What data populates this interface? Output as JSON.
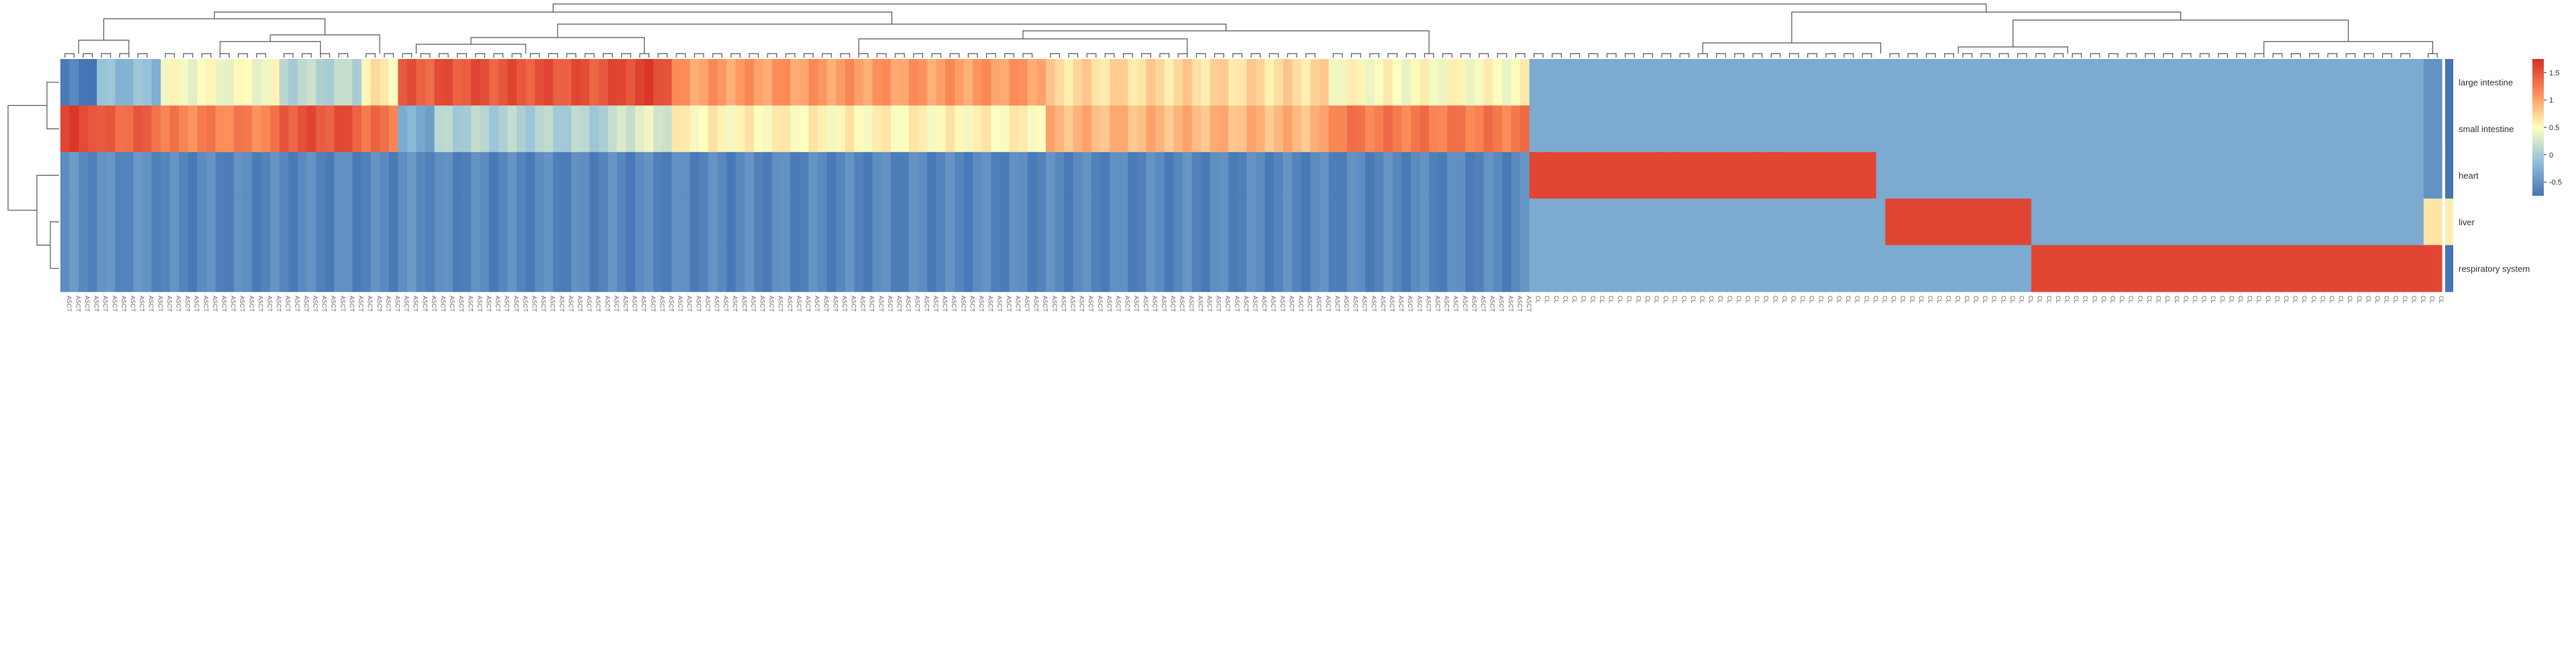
{
  "chart_data": {
    "type": "heatmap",
    "title": "",
    "rows": [
      "large intestine",
      "small intestine",
      "heart",
      "liver",
      "respiratory system"
    ],
    "column_groups": [
      {
        "name": "ASCT",
        "count": 4,
        "values": [
          -0.7,
          1.6,
          -0.55,
          -0.55,
          -0.55
        ]
      },
      {
        "name": "ASCT",
        "count": 7,
        "values": [
          -0.15,
          1.4,
          -0.55,
          -0.55,
          -0.55
        ]
      },
      {
        "name": "ASCT",
        "count": 13,
        "values": [
          0.45,
          1.2,
          -0.6,
          -0.6,
          -0.6
        ]
      },
      {
        "name": "ASCT",
        "count": 9,
        "values": [
          0.1,
          1.5,
          -0.6,
          -0.6,
          -0.6
        ]
      },
      {
        "name": "ASCT",
        "count": 4,
        "values": [
          0.6,
          1.3,
          -0.6,
          -0.6,
          -0.6
        ]
      },
      {
        "name": "ASCT",
        "count": 4,
        "values": [
          1.45,
          -0.3,
          -0.55,
          -0.55,
          -0.55
        ]
      },
      {
        "name": "ASCT",
        "count": 20,
        "values": [
          1.5,
          0.05,
          -0.6,
          -0.6,
          -0.6
        ]
      },
      {
        "name": "ASCT",
        "count": 6,
        "values": [
          1.6,
          0.3,
          -0.6,
          -0.6,
          -0.6
        ]
      },
      {
        "name": "ASCT",
        "count": 41,
        "values": [
          1.05,
          0.55,
          -0.6,
          -0.6,
          -0.6
        ]
      },
      {
        "name": "ASCT",
        "count": 31,
        "values": [
          0.7,
          0.9,
          -0.6,
          -0.6,
          -0.6
        ]
      },
      {
        "name": "ASCT",
        "count": 22,
        "values": [
          0.5,
          1.25,
          -0.6,
          -0.6,
          -0.6
        ]
      },
      {
        "name": "CL",
        "count": 38,
        "values": [
          -0.3,
          -0.3,
          1.6,
          -0.3,
          -0.3
        ]
      },
      {
        "name": "CL",
        "count": 1,
        "values": [
          -0.3,
          -0.3,
          -0.3,
          -0.3,
          -0.3
        ]
      },
      {
        "name": "CL",
        "count": 16,
        "values": [
          -0.3,
          -0.3,
          -0.3,
          1.6,
          -0.3
        ]
      },
      {
        "name": "CL",
        "count": 8,
        "values": [
          -0.3,
          -0.3,
          -0.3,
          -0.3,
          1.6
        ]
      },
      {
        "name": "CL",
        "count": 35,
        "values": [
          -0.3,
          -0.3,
          -0.3,
          -0.3,
          1.6
        ]
      },
      {
        "name": "CL",
        "count": 2,
        "values": [
          -0.5,
          -0.5,
          -0.5,
          0.65,
          1.6
        ]
      }
    ],
    "column_labels": [
      "ASCT",
      "CL"
    ],
    "colorbar": {
      "range": [
        -0.75,
        1.75
      ],
      "ticks": [
        {
          "value": 1.5,
          "label": "1.5"
        },
        {
          "value": 1,
          "label": "1"
        },
        {
          "value": 0.5,
          "label": "0.5"
        },
        {
          "value": 0,
          "label": "0"
        },
        {
          "value": -0.5,
          "label": "-0.5"
        }
      ],
      "colors": [
        "#4575b4",
        "#91bfdb",
        "#ffffbf",
        "#fc8d59",
        "#d73027"
      ]
    },
    "row_dendrogram": true,
    "column_dendrogram": true,
    "legend_position": "right"
  }
}
